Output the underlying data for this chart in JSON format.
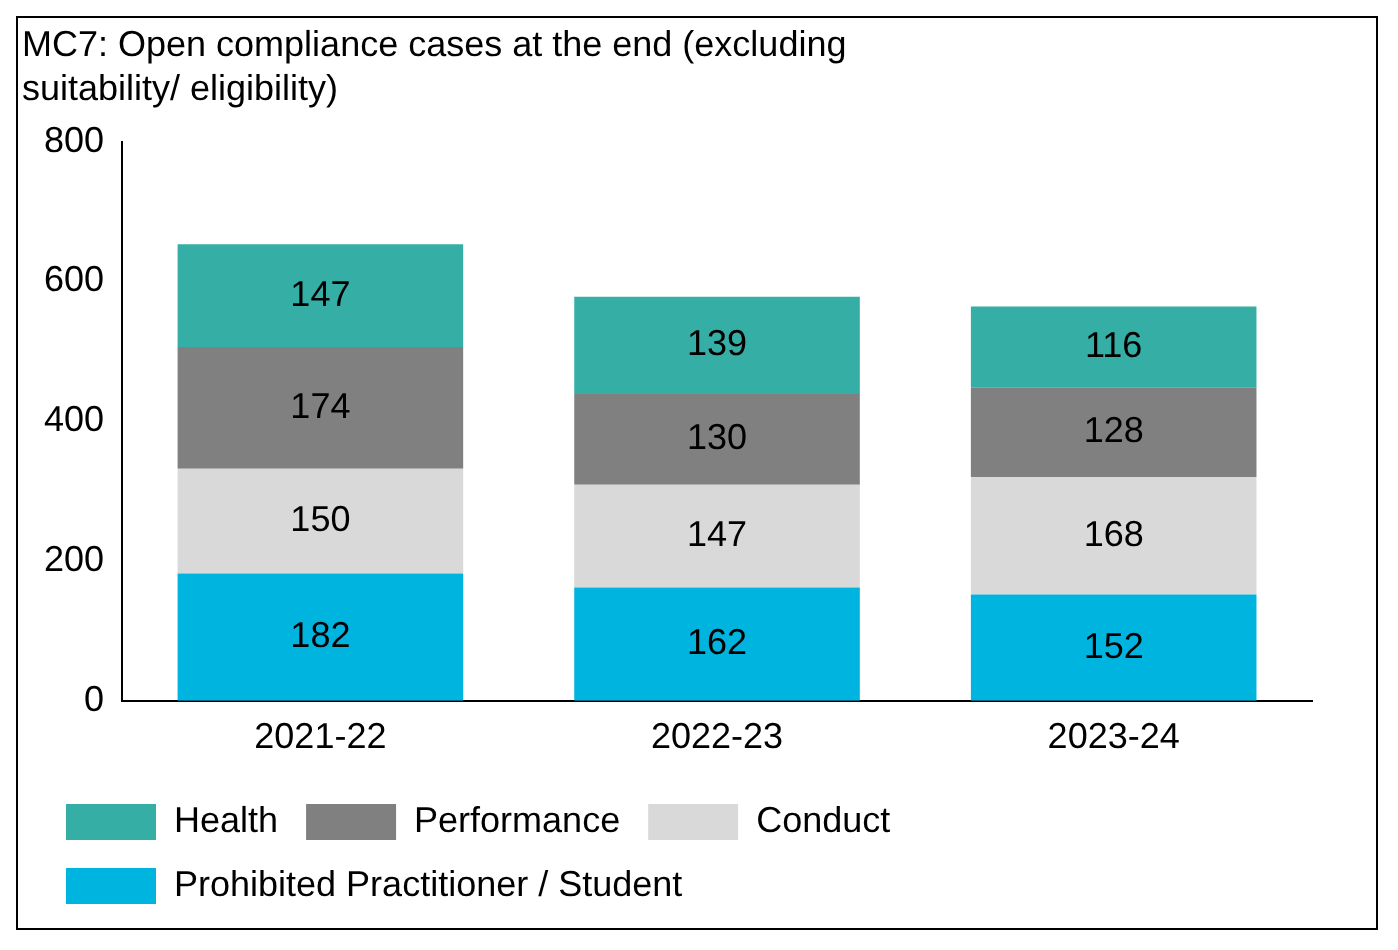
{
  "chart_data": {
    "type": "bar",
    "title": "MC7: Open compliance cases at the end (excluding suitability/ eligibility)",
    "categories": [
      "2021-22",
      "2022-23",
      "2023-24"
    ],
    "stacked": true,
    "series": [
      {
        "name": "Prohibited Practitioner / Student",
        "color": "#00b4e0",
        "values": [
          182,
          162,
          152
        ]
      },
      {
        "name": "Conduct",
        "color": "#d9d9d9",
        "values": [
          150,
          147,
          168
        ]
      },
      {
        "name": "Performance",
        "color": "#808080",
        "values": [
          174,
          130,
          128
        ]
      },
      {
        "name": "Health",
        "color": "#35aea6",
        "values": [
          147,
          139,
          116
        ]
      }
    ],
    "ylim": [
      0,
      800
    ],
    "yticks": [
      0,
      200,
      400,
      600,
      800
    ],
    "grid": false,
    "legend": "bottom",
    "data_labels": true
  }
}
